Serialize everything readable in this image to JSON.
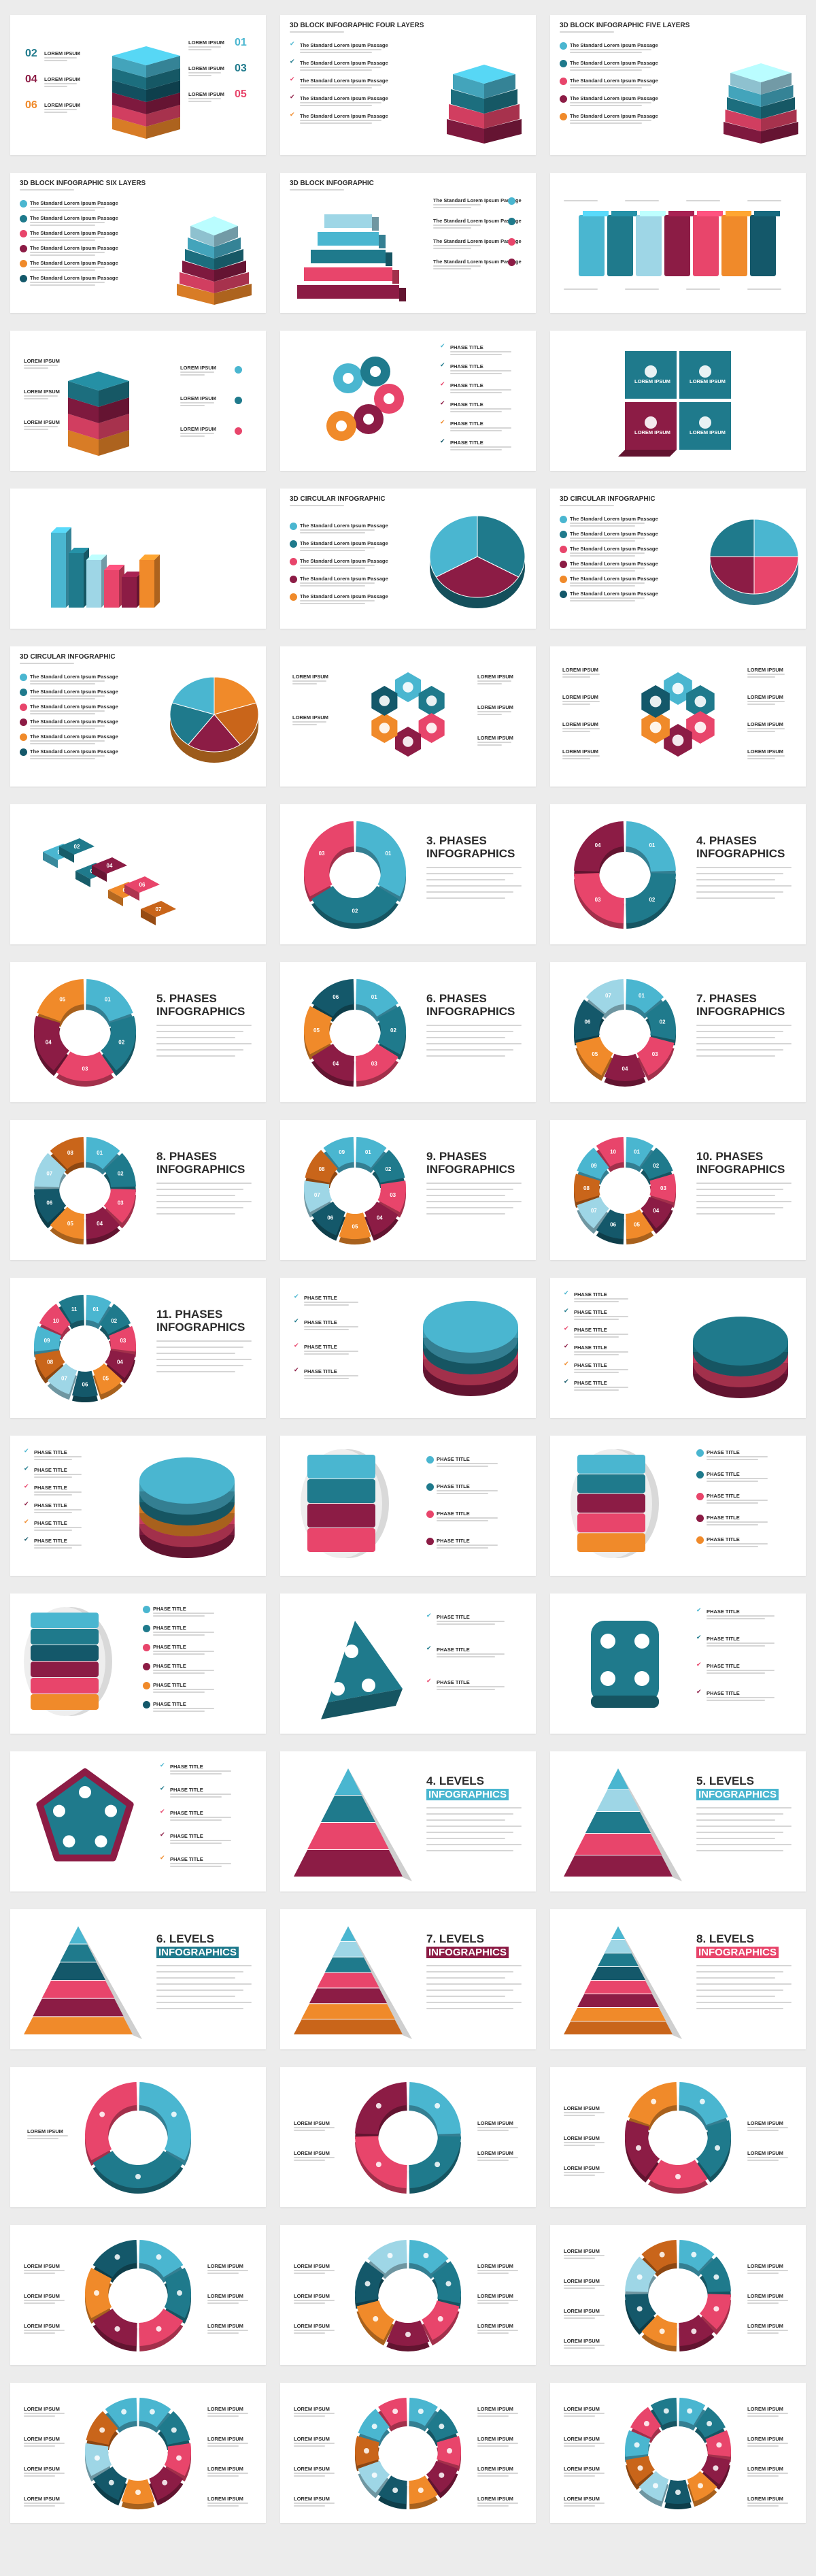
{
  "palette": {
    "blue": "#4ab6d0",
    "teal": "#1f7a8c",
    "darkteal": "#14586a",
    "pink": "#e8456b",
    "wine": "#8c1c45",
    "orange": "#f08a2a",
    "darkorange": "#c9651a",
    "text": "#2b2b2b",
    "gray": "#d6d6d6",
    "lightblue": "#9ed6e6"
  },
  "text": {
    "lorem": "LOREM IPSUM",
    "phase": "PHASE TITLE",
    "passage": "The Standard Lorem Ipsum Passage",
    "phases_word": "PHASES",
    "infographics": "INFOGRAPHICS",
    "levels_word": "LEVELS",
    "levels_infographics": "INFOGRAPHICS"
  },
  "slides": [
    {
      "titles": [],
      "numbers": [
        "02",
        "01",
        "04",
        "03",
        "06",
        "05"
      ]
    },
    {
      "titles": [
        "3D BLOCK INFOGRAPHIC FOUR LAYERS"
      ]
    },
    {
      "titles": [
        "3D BLOCK INFOGRAPHIC FIVE LAYERS"
      ]
    },
    {
      "titles": [
        "3D BLOCK INFOGRAPHIC SIX LAYERS"
      ]
    },
    {
      "titles": [
        "3D BLOCK INFOGRAPHIC"
      ]
    },
    {
      "titles": []
    },
    {
      "titles": []
    },
    {
      "titles": []
    },
    {
      "titles": []
    },
    {
      "titles": []
    },
    {
      "titles": [
        "3D CIRCULAR INFOGRAPHIC"
      ]
    },
    {
      "titles": [
        "3D CIRCULAR INFOGRAPHIC"
      ]
    },
    {
      "titles": [
        "3D CIRCULAR INFOGRAPHIC"
      ]
    },
    {
      "titles": []
    },
    {
      "titles": []
    },
    {
      "titles": [],
      "numbers": [
        "01",
        "02",
        "03",
        "04",
        "05",
        "06",
        "07"
      ]
    },
    {
      "titles": [
        "3."
      ],
      "ring_labels": [
        "01",
        "02",
        "03"
      ]
    },
    {
      "titles": [
        "4."
      ],
      "ring_labels": [
        "01",
        "02",
        "03",
        "04"
      ]
    },
    {
      "titles": [
        "5."
      ],
      "ring_labels": [
        "01",
        "02",
        "03",
        "04",
        "05"
      ]
    },
    {
      "titles": [
        "6."
      ],
      "ring_labels": [
        "01",
        "02",
        "03",
        "04",
        "05",
        "06"
      ]
    },
    {
      "titles": [
        "7."
      ],
      "ring_labels": [
        "01",
        "02",
        "03",
        "04",
        "05",
        "06",
        "07"
      ]
    },
    {
      "titles": [
        "8."
      ],
      "ring_labels": [
        "01",
        "02",
        "03",
        "04",
        "05",
        "06",
        "07",
        "08"
      ]
    },
    {
      "titles": [
        "9."
      ],
      "ring_labels": [
        "01",
        "02",
        "03",
        "04",
        "05",
        "06",
        "07",
        "08",
        "09"
      ]
    },
    {
      "titles": [
        "10."
      ],
      "ring_labels": [
        "01",
        "02",
        "03",
        "04",
        "05",
        "06",
        "07",
        "08",
        "09",
        "10"
      ]
    },
    {
      "titles": [
        "11."
      ],
      "ring_labels": [
        "01",
        "02",
        "03",
        "04",
        "05",
        "06",
        "07",
        "08",
        "09",
        "10",
        "11"
      ]
    },
    {
      "titles": []
    },
    {
      "titles": []
    },
    {
      "titles": []
    },
    {
      "titles": []
    },
    {
      "titles": []
    },
    {
      "titles": []
    },
    {
      "titles": []
    },
    {
      "titles": []
    },
    {
      "titles": []
    },
    {
      "titles": [
        "4."
      ]
    },
    {
      "titles": [
        "5."
      ]
    },
    {
      "titles": [
        "6."
      ]
    },
    {
      "titles": [
        "7."
      ]
    },
    {
      "titles": [
        "8."
      ]
    },
    {
      "titles": []
    },
    {
      "titles": []
    },
    {
      "titles": []
    },
    {
      "titles": []
    },
    {
      "titles": []
    },
    {
      "titles": []
    },
    {
      "titles": []
    },
    {
      "titles": []
    },
    {
      "titles": []
    }
  ]
}
